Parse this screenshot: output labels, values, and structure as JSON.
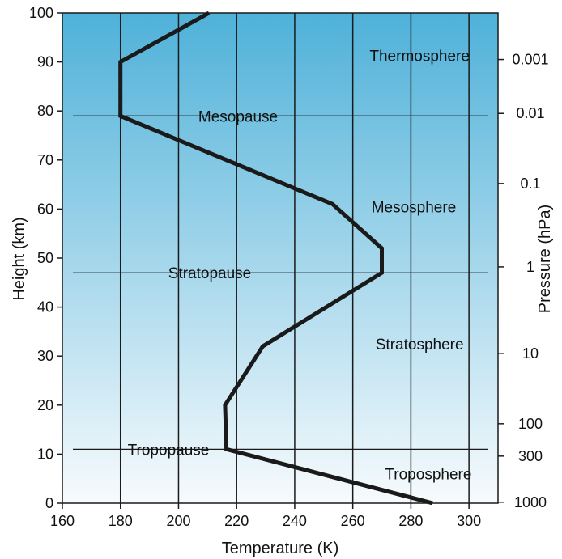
{
  "chart_data": {
    "type": "line",
    "title": "",
    "xlabel": "Temperature (K)",
    "ylabel": "Height (km)",
    "y2label": "Pressure (hPa)",
    "xlim": [
      160,
      310
    ],
    "ylim": [
      0,
      100
    ],
    "grid": true,
    "x_ticks": [
      160,
      180,
      200,
      220,
      240,
      260,
      280,
      300
    ],
    "y_ticks": [
      0,
      10,
      20,
      30,
      40,
      50,
      60,
      70,
      80,
      90,
      100
    ],
    "pressure_ticks": [
      {
        "label": "0.001",
        "height_km": 90.5
      },
      {
        "label": "0.01",
        "height_km": 79.5
      },
      {
        "label": "0.1",
        "height_km": 65.2
      },
      {
        "label": "1",
        "height_km": 48.2
      },
      {
        "label": "10",
        "height_km": 30.5
      },
      {
        "label": "100",
        "height_km": 16.2
      },
      {
        "label": "300",
        "height_km": 9.6
      },
      {
        "label": "1000",
        "height_km": 0.2
      }
    ],
    "series": [
      {
        "x": [
          287.5,
          216.5,
          216,
          229,
          270,
          270,
          253,
          180,
          180,
          210.5
        ],
        "y": [
          0,
          11,
          20,
          32,
          47,
          52,
          61,
          79,
          90,
          100
        ]
      }
    ],
    "boundary_lines": [
      {
        "label": "Tropopause",
        "height_km": 11
      },
      {
        "label": "Stratopause",
        "height_km": 47
      },
      {
        "label": "Mesopause",
        "height_km": 79
      }
    ],
    "regions": [
      {
        "label": "Troposphere",
        "x": 286,
        "y": 6
      },
      {
        "label": "Stratosphere",
        "x": 283,
        "y": 32.5
      },
      {
        "label": "Mesosphere",
        "x": 281,
        "y": 60.5
      },
      {
        "label": "Thermosphere",
        "x": 283,
        "y": 91.3
      }
    ],
    "colors": {
      "top": "#4fb1d9",
      "bottom": "#f7fbfd",
      "line": "#1a1a1a",
      "grid": "#1a1a1a"
    }
  }
}
